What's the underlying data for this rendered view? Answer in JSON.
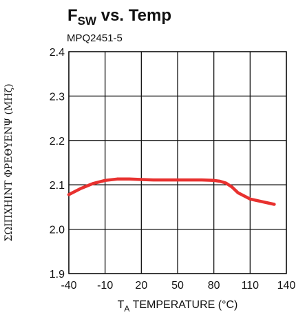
{
  "chart_data": {
    "type": "line",
    "title": "Fsw vs. Temp",
    "title_main": "F",
    "title_sub": "SW",
    "title_rest": " vs. Temp",
    "subtitle": "MPQ2451-5",
    "xlabel_main": "T",
    "xlabel_sub": "A",
    "xlabel_rest": " TEMPERATURE (°C)",
    "ylabel": "ΣΩΙΠΧΗΙΝΤ ΦΡΕΘΥΕΝΨ (ΜΗζ)",
    "xlim": [
      -40,
      140
    ],
    "ylim": [
      1.9,
      2.4
    ],
    "xticks": [
      "-40",
      "-10",
      "20",
      "50",
      "80",
      "110",
      "140"
    ],
    "yticks": [
      "1.9",
      "2.0",
      "2.1",
      "2.2",
      "2.3",
      "2.4"
    ],
    "grid": true,
    "series": [
      {
        "color": "#e8312f",
        "x": [
          -40,
          -30,
          -20,
          -10,
          0,
          10,
          20,
          30,
          40,
          50,
          60,
          70,
          80,
          85,
          90,
          95,
          100,
          110,
          120,
          130
        ],
        "y": [
          2.078,
          2.092,
          2.103,
          2.11,
          2.113,
          2.113,
          2.112,
          2.111,
          2.111,
          2.111,
          2.111,
          2.111,
          2.11,
          2.108,
          2.104,
          2.095,
          2.082,
          2.068,
          2.062,
          2.056
        ]
      }
    ]
  }
}
